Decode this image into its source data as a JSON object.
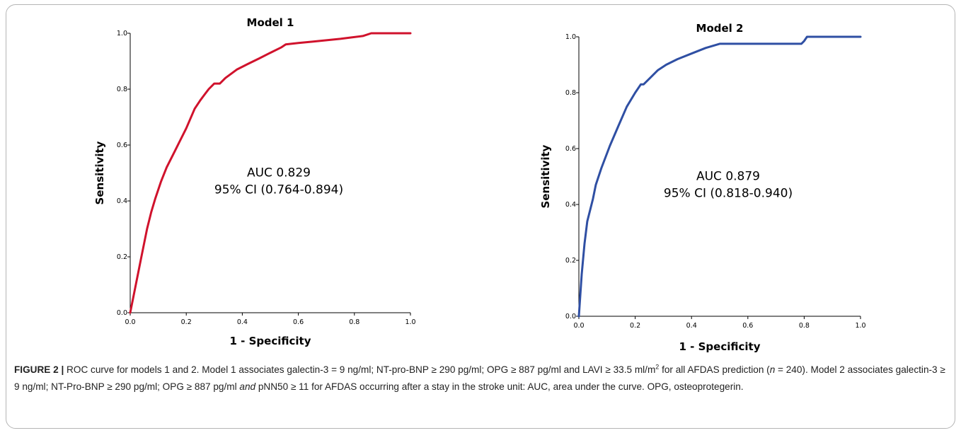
{
  "chart_data": [
    {
      "type": "line",
      "title": "Model 1",
      "xlabel": "1 - Specificity",
      "ylabel": "Sensitivity",
      "xlim": [
        0,
        1
      ],
      "ylim": [
        0,
        1
      ],
      "x_ticks": [
        "0.0",
        "0.2",
        "0.4",
        "0.6",
        "0.8",
        "1.0"
      ],
      "y_ticks": [
        "0.0",
        "0.2",
        "0.4",
        "0.6",
        "0.8",
        "1.0"
      ],
      "color": "#d0122c",
      "grid": false,
      "annotation": [
        "AUC 0.829",
        "95% CI (0.764-0.894)"
      ],
      "series": [
        {
          "x": [
            0,
            0.02,
            0.04,
            0.06,
            0.075,
            0.09,
            0.11,
            0.13,
            0.16,
            0.2,
            0.23,
            0.25,
            0.265,
            0.28,
            0.3,
            0.32,
            0.34,
            0.38,
            0.42,
            0.46,
            0.5,
            0.54,
            0.555,
            0.6,
            0.65,
            0.7,
            0.75,
            0.79,
            0.83,
            0.86,
            0.9,
            1.0
          ],
          "y": [
            0,
            0.1,
            0.2,
            0.3,
            0.36,
            0.41,
            0.47,
            0.52,
            0.58,
            0.66,
            0.73,
            0.76,
            0.78,
            0.8,
            0.82,
            0.82,
            0.84,
            0.87,
            0.89,
            0.91,
            0.93,
            0.95,
            0.96,
            0.965,
            0.97,
            0.975,
            0.98,
            0.985,
            0.99,
            1.0,
            1.0,
            1.0
          ]
        }
      ]
    },
    {
      "type": "line",
      "title": "Model 2",
      "xlabel": "1 - Specificity",
      "ylabel": "Sensitivity",
      "xlim": [
        0,
        1
      ],
      "ylim": [
        0,
        1
      ],
      "x_ticks": [
        "0.0",
        "0.2",
        "0.4",
        "0.6",
        "0.8",
        "1.0"
      ],
      "y_ticks": [
        "0.0",
        "0.2",
        "0.4",
        "0.6",
        "0.8",
        "1.0"
      ],
      "color": "#2f4fa3",
      "grid": false,
      "annotation": [
        "AUC 0.879",
        "95% CI (0.818-0.940)"
      ],
      "series": [
        {
          "x": [
            0,
            0.01,
            0.02,
            0.03,
            0.05,
            0.06,
            0.08,
            0.11,
            0.14,
            0.17,
            0.2,
            0.22,
            0.23,
            0.25,
            0.28,
            0.31,
            0.35,
            0.4,
            0.45,
            0.5,
            0.6,
            0.7,
            0.79,
            0.8,
            0.81,
            0.9,
            1.0
          ],
          "y": [
            0,
            0.15,
            0.26,
            0.34,
            0.42,
            0.47,
            0.53,
            0.61,
            0.68,
            0.75,
            0.8,
            0.83,
            0.83,
            0.85,
            0.88,
            0.9,
            0.92,
            0.94,
            0.96,
            0.975,
            0.975,
            0.975,
            0.975,
            0.985,
            1.0,
            1.0,
            1.0
          ]
        }
      ]
    }
  ],
  "caption": {
    "label": "FIGURE 2 |",
    "p1": " ROC curve for models 1 and 2. Model 1 associates galectin-3 = 9 ng/ml; NT-pro-BNP ≥ 290 pg/ml; OPG ≥ 887 pg/ml and LAVI ≥ 33.5 ml/m",
    "sup": "2",
    "p2": " for all AFDAS prediction (",
    "n_var": "n",
    "p3": " = 240). Model 2 associates galectin-3 ≥ 9 ng/ml; NT-Pro-BNP ≥ 290 pg/ml; OPG ≥ 887 pg/ml ",
    "and_word": "and",
    "p4": " pNN50 ≥ 11 for AFDAS occurring after a stay in the stroke unit: AUC, area under the curve. OPG, osteoprotegerin."
  }
}
